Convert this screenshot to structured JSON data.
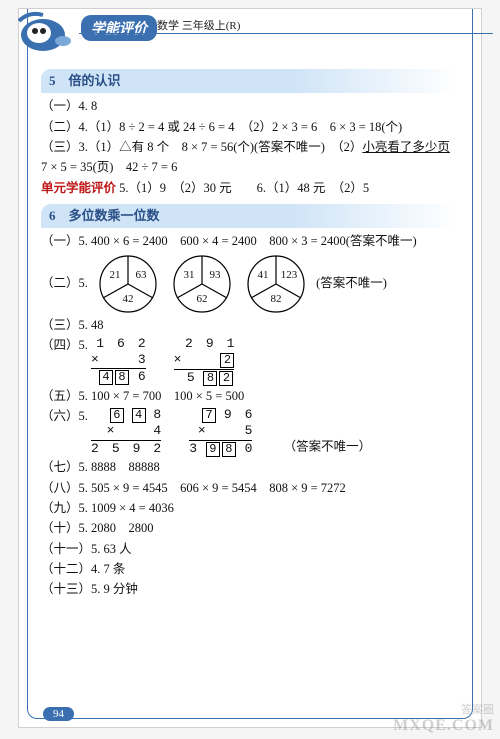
{
  "header": {
    "brand": "学能评价",
    "subject": "数学 三年级上(R)"
  },
  "page_number": "94",
  "watermark_main": "MXQE.COM",
  "watermark_small": "答案圈",
  "sections": [
    {
      "title": "5　倍的认识",
      "lines": {
        "l1": "（一）4. 8",
        "l2": "（二）4.（1）8 ÷ 2 = 4 或 24 ÷ 6 = 4　（2）2 × 3 = 6　6 × 3 = 18(个)",
        "l3a": "（三）3.（1）△有 8 个　8 × 7 = 56(个)(答案不唯一)　（2）",
        "l3u": "小亮看了多少页",
        "l4": "7 × 5 = 35(页)　42 ÷ 7 = 6",
        "l5a": "单元学能评价",
        "l5b": " 5.（1）9　（2）30 元　　6.（1）48 元　（2）5"
      }
    },
    {
      "title": "6　多位数乘一位数",
      "lines": {
        "p1": "（一）5. 400 × 6 = 2400　600 × 4 = 2400　800 × 3 = 2400(答案不唯一)",
        "p2label": "（二）5.",
        "p2note": "(答案不唯一)",
        "circles": [
          {
            "tl": "21",
            "tr": "63",
            "b": "42"
          },
          {
            "tl": "31",
            "tr": "93",
            "b": "62"
          },
          {
            "tl": "41",
            "tr": "123",
            "b": "82"
          }
        ],
        "p3": "（三）5. 48",
        "p4label": "（四）5.",
        "mul4": [
          {
            "top": "1　6　2",
            "factor": "3",
            "result_pre": "",
            "boxes": [
              "4",
              "8"
            ],
            "result_post": " 6"
          },
          {
            "top": "2　9　1",
            "factor_boxed": "2",
            "result_pre": "5 ",
            "boxes": [
              "8",
              "2"
            ],
            "result_post": ""
          }
        ],
        "p5": "（五）5. 100 × 7 = 700　100 × 5 = 500",
        "p6label": "（六）5.",
        "p6note": "（答案不唯一）",
        "mul6": [
          {
            "top_boxes": [
              "6",
              "4"
            ],
            "top_post": " 8",
            "factor": "4",
            "result": "2　5　9　2"
          },
          {
            "top_pre": "",
            "top_boxes": [
              "7"
            ],
            "top_post": " 9　6",
            "factor": "5",
            "result_pre": "3 ",
            "result_boxes": [
              "9",
              "8"
            ],
            "result_post": " 0"
          }
        ],
        "p7": "（七）5. 8888　88888",
        "p8": "（八）5. 505 × 9 = 4545　606 × 9 = 5454　808 × 9 = 7272",
        "p9": "（九）5. 1009 × 4 = 4036",
        "p10": "（十）5. 2080　2800",
        "p11": "（十一）5. 63 人",
        "p12": "（十二）4. 7 条",
        "p13": "（十三）5. 9 分钟"
      }
    }
  ]
}
